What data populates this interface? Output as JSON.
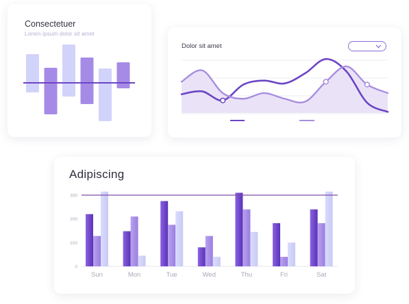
{
  "colors": {
    "purple_dark": "#6d45c9",
    "purple_mid": "#a58be6",
    "purple_light": "#d2d3fa",
    "line_dark": "#6b44c4",
    "line_light": "#a88de0",
    "fill_light": "#e6def6"
  },
  "card1": {
    "title": "Consectetuer",
    "subtitle": "Lorem ipsum dolor sit amet"
  },
  "card2": {
    "title": "Dolor sit amet",
    "dropdown_icon": "chevron-down-icon"
  },
  "card3": {
    "title": "Adipiscing"
  },
  "chart_data": [
    {
      "type": "bar",
      "title": "Consectetuer",
      "subtitle": "Lorem ipsum dolor sit amet",
      "note": "floating bars around a baseline",
      "bars": [
        {
          "low": -14,
          "high": 42,
          "tone": "light"
        },
        {
          "low": -46,
          "high": 22,
          "tone": "mid"
        },
        {
          "low": -20,
          "high": 56,
          "tone": "light"
        },
        {
          "low": -31,
          "high": 37,
          "tone": "mid"
        },
        {
          "low": -56,
          "high": 21,
          "tone": "light"
        },
        {
          "low": -8,
          "high": 30,
          "tone": "mid"
        }
      ],
      "baseline": 0,
      "ylim": [
        -60,
        60
      ],
      "grid": false
    },
    {
      "type": "line",
      "title": "Dolor sit amet",
      "x": [
        0,
        1,
        2,
        3,
        4,
        5,
        6,
        7,
        8,
        9,
        10
      ],
      "ylim": [
        0,
        100
      ],
      "series": [
        {
          "tone": "dark",
          "values": [
            33,
            38,
            22,
            50,
            57,
            52,
            70,
            95,
            73,
            18,
            2
          ]
        },
        {
          "tone": "light",
          "filled": true,
          "values": [
            55,
            75,
            35,
            25,
            35,
            25,
            20,
            55,
            82,
            50,
            35
          ]
        }
      ],
      "markers": [
        {
          "series": 0,
          "index": 2
        },
        {
          "series": 1,
          "index": 7
        },
        {
          "series": 1,
          "index": 9
        }
      ],
      "legend": "bottom-center",
      "grid": true
    },
    {
      "type": "bar",
      "title": "Adipiscing",
      "categories": [
        "Sun",
        "Mon",
        "Tue",
        "Wed",
        "Thu",
        "Fri",
        "Sat"
      ],
      "yticks": [
        "0",
        "100",
        "200",
        "300"
      ],
      "ylim": [
        0,
        300
      ],
      "reference_line": 300,
      "series": [
        {
          "tone": "dark",
          "values": [
            220,
            148,
            275,
            80,
            310,
            182,
            240
          ]
        },
        {
          "tone": "mid",
          "values": [
            128,
            210,
            175,
            128,
            240,
            40,
            182
          ]
        },
        {
          "tone": "light",
          "values": [
            315,
            45,
            232,
            40,
            145,
            100,
            315
          ]
        }
      ],
      "grid": false
    }
  ]
}
